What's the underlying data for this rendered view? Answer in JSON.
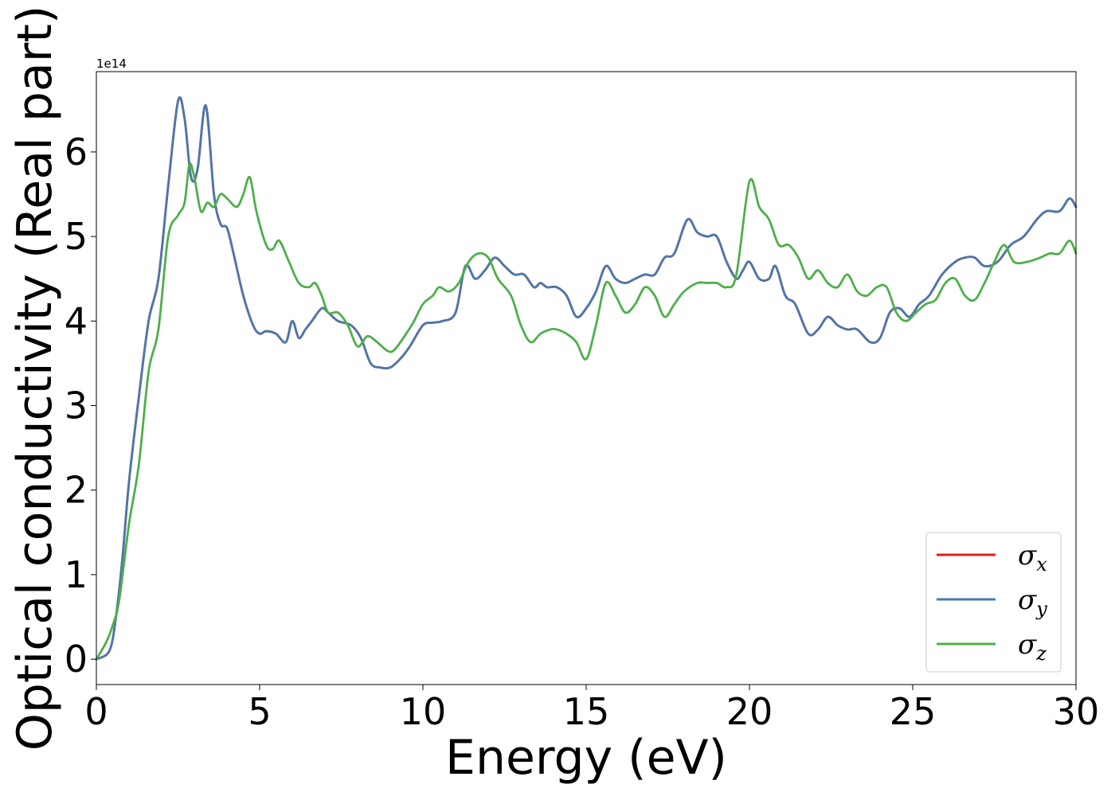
{
  "chart_data": {
    "type": "line",
    "title": "",
    "xlabel": "Energy (eV)",
    "ylabel": "Optical conductivity (Real part)",
    "y_offset_label": "1e14",
    "xlim": [
      0,
      30
    ],
    "ylim": [
      -0.3,
      6.95
    ],
    "xticks": [
      0,
      5,
      10,
      15,
      20,
      25,
      30
    ],
    "xtick_labels": [
      "0",
      "5",
      "10",
      "15",
      "20",
      "25",
      "30"
    ],
    "yticks": [
      0,
      1,
      2,
      3,
      4,
      5,
      6
    ],
    "ytick_labels": [
      "0",
      "1",
      "2",
      "3",
      "4",
      "5",
      "6"
    ],
    "grid": false,
    "legend_position": "bottom-right",
    "series": [
      {
        "name": "σx",
        "symbol": "σ",
        "subscript": "x",
        "color": "#e41a1c",
        "x": [
          0.0,
          0.4,
          0.6,
          0.8,
          1.0,
          1.3,
          1.6,
          1.9,
          2.2,
          2.5,
          2.7,
          2.9,
          3.1,
          3.35,
          3.6,
          3.8,
          4.0,
          4.2,
          4.5,
          4.8,
          5.0,
          5.2,
          5.5,
          5.8,
          6.0,
          6.2,
          6.4,
          6.6,
          6.9,
          7.1,
          7.4,
          7.8,
          8.1,
          8.4,
          8.7,
          9.0,
          9.3,
          9.6,
          10.0,
          10.3,
          10.6,
          11.0,
          11.3,
          11.6,
          11.9,
          12.2,
          12.5,
          12.8,
          13.1,
          13.4,
          13.6,
          13.8,
          14.1,
          14.4,
          14.7,
          15.0,
          15.3,
          15.6,
          15.9,
          16.2,
          16.5,
          16.8,
          17.1,
          17.4,
          17.7,
          18.1,
          18.4,
          18.7,
          19.0,
          19.3,
          19.6,
          19.8,
          20.0,
          20.3,
          20.6,
          20.8,
          21.1,
          21.4,
          21.8,
          22.1,
          22.4,
          22.7,
          23.0,
          23.3,
          23.7,
          24.0,
          24.3,
          24.6,
          24.9,
          25.2,
          25.5,
          25.9,
          26.3,
          26.6,
          26.9,
          27.2,
          27.6,
          28.0,
          28.4,
          28.8,
          29.1,
          29.5,
          29.8,
          30.0
        ],
        "values": [
          0.0,
          0.1,
          0.5,
          1.2,
          2.1,
          3.1,
          4.0,
          4.5,
          5.6,
          6.6,
          6.4,
          5.7,
          5.8,
          6.55,
          5.5,
          5.15,
          5.1,
          4.8,
          4.3,
          3.95,
          3.85,
          3.88,
          3.85,
          3.75,
          4.0,
          3.8,
          3.9,
          4.0,
          4.15,
          4.1,
          4.0,
          3.95,
          3.8,
          3.5,
          3.45,
          3.45,
          3.55,
          3.7,
          3.95,
          3.98,
          4.0,
          4.1,
          4.65,
          4.5,
          4.6,
          4.75,
          4.65,
          4.55,
          4.55,
          4.4,
          4.45,
          4.4,
          4.4,
          4.3,
          4.05,
          4.15,
          4.35,
          4.65,
          4.5,
          4.45,
          4.5,
          4.55,
          4.55,
          4.75,
          4.8,
          5.2,
          5.05,
          5.0,
          5.0,
          4.7,
          4.5,
          4.6,
          4.7,
          4.5,
          4.5,
          4.65,
          4.3,
          4.2,
          3.85,
          3.9,
          4.05,
          3.95,
          3.9,
          3.9,
          3.75,
          3.8,
          4.1,
          4.15,
          4.05,
          4.2,
          4.3,
          4.55,
          4.7,
          4.75,
          4.75,
          4.65,
          4.7,
          4.9,
          5.0,
          5.2,
          5.3,
          5.3,
          5.45,
          5.35
        ]
      },
      {
        "name": "σy",
        "symbol": "σ",
        "subscript": "y",
        "color": "#4a78ad",
        "x": [
          0.0,
          0.4,
          0.6,
          0.8,
          1.0,
          1.3,
          1.6,
          1.9,
          2.2,
          2.5,
          2.7,
          2.9,
          3.1,
          3.35,
          3.6,
          3.8,
          4.0,
          4.2,
          4.5,
          4.8,
          5.0,
          5.2,
          5.5,
          5.8,
          6.0,
          6.2,
          6.4,
          6.6,
          6.9,
          7.1,
          7.4,
          7.8,
          8.1,
          8.4,
          8.7,
          9.0,
          9.3,
          9.6,
          10.0,
          10.3,
          10.6,
          11.0,
          11.3,
          11.6,
          11.9,
          12.2,
          12.5,
          12.8,
          13.1,
          13.4,
          13.6,
          13.8,
          14.1,
          14.4,
          14.7,
          15.0,
          15.3,
          15.6,
          15.9,
          16.2,
          16.5,
          16.8,
          17.1,
          17.4,
          17.7,
          18.1,
          18.4,
          18.7,
          19.0,
          19.3,
          19.6,
          19.8,
          20.0,
          20.3,
          20.6,
          20.8,
          21.1,
          21.4,
          21.8,
          22.1,
          22.4,
          22.7,
          23.0,
          23.3,
          23.7,
          24.0,
          24.3,
          24.6,
          24.9,
          25.2,
          25.5,
          25.9,
          26.3,
          26.6,
          26.9,
          27.2,
          27.6,
          28.0,
          28.4,
          28.8,
          29.1,
          29.5,
          29.8,
          30.0
        ],
        "values": [
          0.0,
          0.1,
          0.5,
          1.2,
          2.1,
          3.1,
          4.0,
          4.5,
          5.6,
          6.6,
          6.4,
          5.7,
          5.8,
          6.55,
          5.5,
          5.15,
          5.1,
          4.8,
          4.3,
          3.95,
          3.85,
          3.88,
          3.85,
          3.75,
          4.0,
          3.8,
          3.9,
          4.0,
          4.15,
          4.1,
          4.0,
          3.95,
          3.8,
          3.5,
          3.45,
          3.45,
          3.55,
          3.7,
          3.95,
          3.98,
          4.0,
          4.1,
          4.65,
          4.5,
          4.6,
          4.75,
          4.65,
          4.55,
          4.55,
          4.4,
          4.45,
          4.4,
          4.4,
          4.3,
          4.05,
          4.15,
          4.35,
          4.65,
          4.5,
          4.45,
          4.5,
          4.55,
          4.55,
          4.75,
          4.8,
          5.2,
          5.05,
          5.0,
          5.0,
          4.7,
          4.5,
          4.6,
          4.7,
          4.5,
          4.5,
          4.65,
          4.3,
          4.2,
          3.85,
          3.9,
          4.05,
          3.95,
          3.9,
          3.9,
          3.75,
          3.8,
          4.1,
          4.15,
          4.05,
          4.2,
          4.3,
          4.55,
          4.7,
          4.75,
          4.75,
          4.65,
          4.7,
          4.9,
          5.0,
          5.2,
          5.3,
          5.3,
          5.45,
          5.35
        ]
      },
      {
        "name": "σz",
        "symbol": "σ",
        "subscript": "z",
        "color": "#4daf4a",
        "x": [
          0.0,
          0.3,
          0.5,
          0.7,
          1.0,
          1.3,
          1.6,
          1.9,
          2.2,
          2.5,
          2.7,
          2.85,
          3.0,
          3.2,
          3.4,
          3.6,
          3.8,
          4.0,
          4.3,
          4.5,
          4.7,
          4.9,
          5.2,
          5.4,
          5.6,
          5.9,
          6.2,
          6.5,
          6.7,
          6.9,
          7.1,
          7.4,
          7.7,
          8.0,
          8.3,
          8.6,
          8.9,
          9.1,
          9.4,
          9.7,
          10.0,
          10.3,
          10.5,
          10.8,
          11.1,
          11.4,
          11.7,
          12.0,
          12.3,
          12.7,
          13.0,
          13.3,
          13.6,
          13.9,
          14.1,
          14.4,
          14.7,
          15.0,
          15.3,
          15.6,
          15.9,
          16.2,
          16.5,
          16.8,
          17.1,
          17.4,
          17.7,
          18.0,
          18.4,
          18.7,
          19.0,
          19.3,
          19.6,
          20.0,
          20.3,
          20.6,
          20.9,
          21.2,
          21.5,
          21.8,
          22.1,
          22.4,
          22.7,
          23.0,
          23.3,
          23.6,
          23.9,
          24.2,
          24.5,
          24.8,
          25.1,
          25.4,
          25.7,
          26.0,
          26.3,
          26.6,
          26.9,
          27.2,
          27.5,
          27.8,
          28.1,
          28.5,
          28.9,
          29.2,
          29.5,
          29.8,
          30.0
        ],
        "values": [
          0.0,
          0.2,
          0.4,
          0.7,
          1.6,
          2.3,
          3.4,
          3.9,
          5.0,
          5.25,
          5.4,
          5.85,
          5.7,
          5.3,
          5.4,
          5.35,
          5.5,
          5.45,
          5.35,
          5.5,
          5.7,
          5.3,
          4.9,
          4.85,
          4.95,
          4.7,
          4.45,
          4.4,
          4.45,
          4.3,
          4.1,
          4.1,
          3.95,
          3.7,
          3.82,
          3.75,
          3.65,
          3.65,
          3.8,
          3.98,
          4.2,
          4.3,
          4.4,
          4.35,
          4.45,
          4.7,
          4.8,
          4.75,
          4.5,
          4.3,
          3.95,
          3.75,
          3.85,
          3.9,
          3.9,
          3.85,
          3.75,
          3.55,
          3.95,
          4.45,
          4.3,
          4.1,
          4.2,
          4.4,
          4.3,
          4.05,
          4.2,
          4.35,
          4.45,
          4.45,
          4.45,
          4.4,
          4.55,
          5.65,
          5.35,
          5.2,
          4.9,
          4.9,
          4.75,
          4.5,
          4.6,
          4.45,
          4.4,
          4.55,
          4.35,
          4.3,
          4.4,
          4.4,
          4.1,
          4.0,
          4.1,
          4.2,
          4.25,
          4.45,
          4.5,
          4.3,
          4.25,
          4.45,
          4.7,
          4.9,
          4.7,
          4.7,
          4.75,
          4.8,
          4.8,
          4.95,
          4.8
        ]
      }
    ]
  }
}
